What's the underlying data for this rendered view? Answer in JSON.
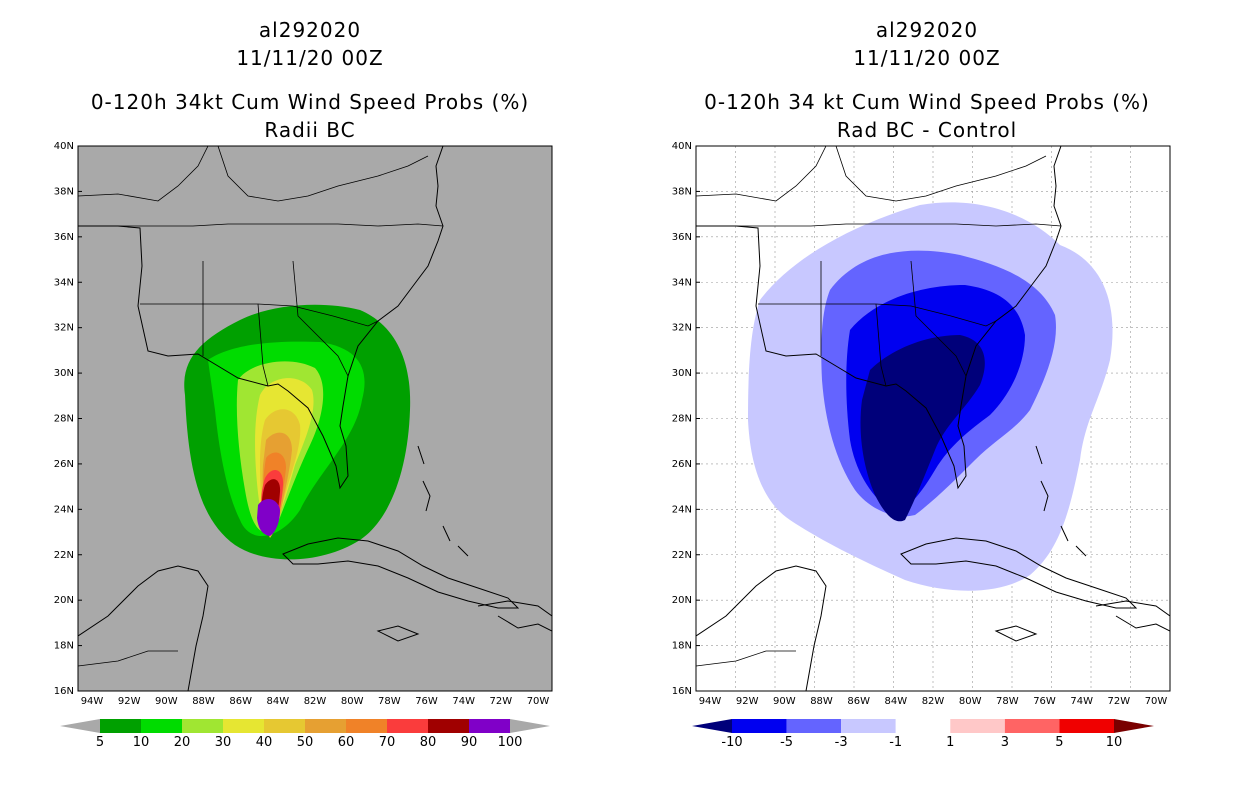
{
  "left_panel": {
    "storm_id": "al292020",
    "datetime": "11/11/20 00Z",
    "title": "0-120h 34kt Cum Wind Speed Probs (%)",
    "subtitle": "Radii BC",
    "background_color": "#a9a9a9",
    "colorbar": {
      "colors": [
        "#00a000",
        "#00dc00",
        "#a0e632",
        "#e6e632",
        "#e6c832",
        "#e6a032",
        "#f08228",
        "#fa3c3c",
        "#a00000",
        "#8000c8"
      ],
      "labels": [
        "5",
        "10",
        "20",
        "30",
        "40",
        "50",
        "60",
        "70",
        "80",
        "90",
        "100"
      ]
    }
  },
  "right_panel": {
    "storm_id": "al292020",
    "datetime": "11/11/20 00Z",
    "title": "0-120h 34 kt Cum Wind Speed Probs (%)",
    "subtitle": "Rad BC - Control",
    "background_color": "#ffffff",
    "colorbar": {
      "colors": [
        "#00007a",
        "#0000f0",
        "#6464ff",
        "#c8c8ff",
        "#ffffff",
        "#ffc8c8",
        "#ff6464",
        "#f00000",
        "#7a0000"
      ],
      "labels": [
        "-10",
        "-5",
        "-3",
        "-1",
        "1",
        "3",
        "5",
        "10"
      ]
    }
  },
  "axes": {
    "lat_labels": [
      "40N",
      "38N",
      "36N",
      "34N",
      "32N",
      "30N",
      "28N",
      "26N",
      "24N",
      "22N",
      "20N",
      "18N",
      "16N"
    ],
    "lon_labels": [
      "94W",
      "92W",
      "90W",
      "88W",
      "86W",
      "84W",
      "82W",
      "80W",
      "78W",
      "76W",
      "74W",
      "72W",
      "70W"
    ]
  }
}
